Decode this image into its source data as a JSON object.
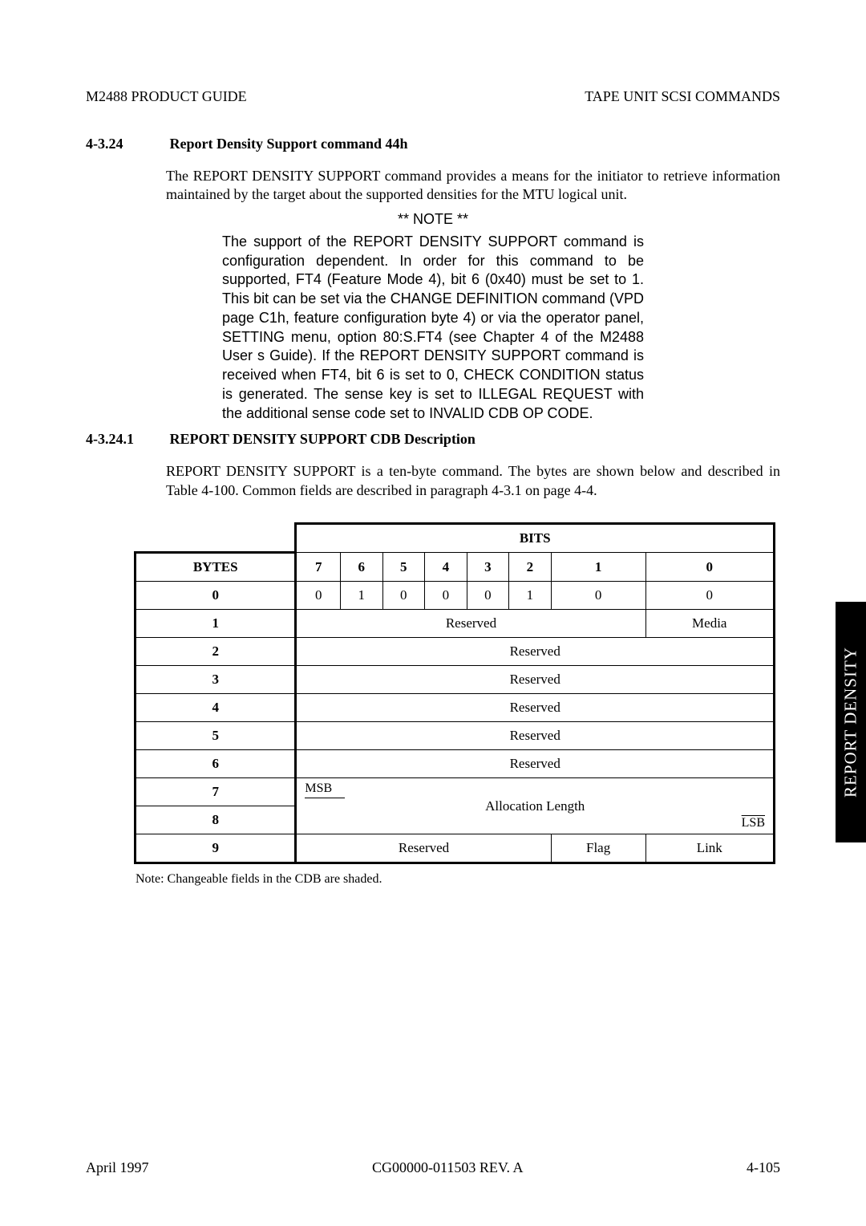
{
  "header": {
    "left": "M2488 PRODUCT GUIDE",
    "right": "TAPE UNIT SCSI COMMANDS"
  },
  "section1": {
    "num": "4-3.24",
    "title": "Report Density Support command 44h",
    "para": "The REPORT DENSITY SUPPORT command provides a means for the initiator to retrieve information maintained by the target about the supported densities for the MTU logical unit."
  },
  "note": {
    "header": "** NOTE **",
    "body": "The support of the REPORT DENSITY SUPPORT command is configuration dependent. In order for this command to be supported, FT4 (Feature Mode 4), bit 6 (0x40) must be set to 1. This bit can be set via the CHANGE DEFINITION command (VPD page C1h, feature configuration byte 4) or via the operator panel, SETTING menu, option 80:S.FT4 (see Chapter 4 of the M2488 User s Guide). If the REPORT DENSITY SUPPORT command is received when FT4, bit 6 is set to 0, CHECK CONDITION status is generated. The sense key is set to ILLEGAL REQUEST with the additional sense code set to INVALID CDB OP CODE."
  },
  "section2": {
    "num": "4-3.24.1",
    "title": "REPORT DENSITY SUPPORT CDB Description",
    "para": "REPORT DENSITY SUPPORT is a ten-byte command. The bytes are shown below and described in Table 4-100. Common fields are described in paragraph  4-3.1 on page 4-4."
  },
  "table": {
    "bits_label": "BITS",
    "bytes_label": "BYTES",
    "bit_headers": [
      "7",
      "6",
      "5",
      "4",
      "3",
      "2",
      "1",
      "0"
    ],
    "row0": [
      "0",
      "1",
      "0",
      "0",
      "0",
      "1",
      "0",
      "0"
    ],
    "byte_labels": [
      "0",
      "1",
      "2",
      "3",
      "4",
      "5",
      "6",
      "7",
      "8",
      "9"
    ],
    "reserved": "Reserved",
    "media": "Media",
    "msb": "MSB",
    "lsb": "LSB",
    "alloc": "Allocation Length",
    "flag": "Flag",
    "link": "Link",
    "note": "Note: Changeable fields in the CDB are shaded."
  },
  "sidebar": "REPORT DENSITY",
  "footer": {
    "left": "April 1997",
    "center": "CG00000-011503 REV. A",
    "right": "4-105"
  }
}
